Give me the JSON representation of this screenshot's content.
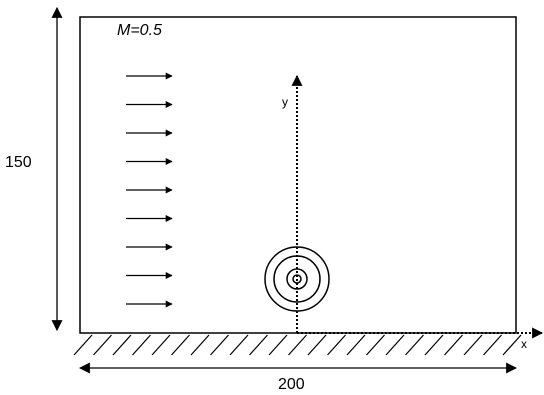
{
  "diagram": {
    "mach_label": "M=0.5",
    "height_label": "150",
    "width_label": "200",
    "x_axis_label": "x",
    "y_axis_label": "y",
    "flow_arrow_count": 9,
    "source_ring_count": 4,
    "line_color": "#000000",
    "background_color": "#ffffff"
  }
}
